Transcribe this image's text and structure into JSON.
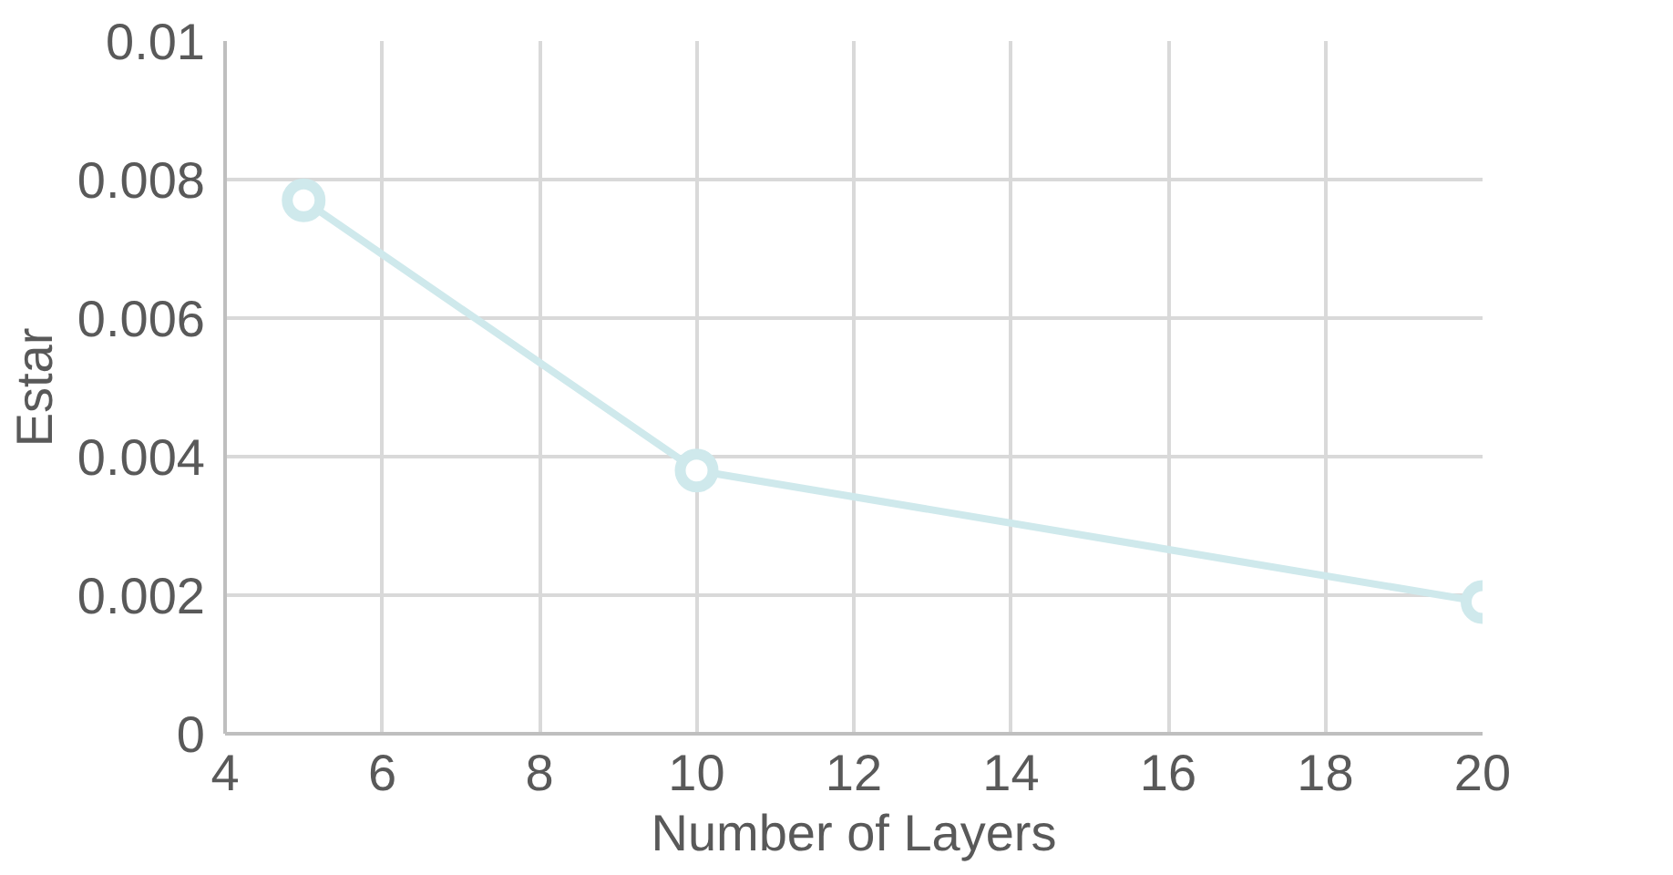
{
  "chart_data": {
    "type": "line",
    "xlabel": "Number of Layers",
    "ylabel": "Estar",
    "x": [
      5,
      10,
      20
    ],
    "series": [
      {
        "color": "#cfe9ec",
        "values": [
          0.0077,
          0.0038,
          0.0019
        ]
      }
    ],
    "xlim": [
      4,
      20
    ],
    "xticks": [
      4,
      6,
      8,
      10,
      12,
      14,
      16,
      18,
      20
    ],
    "ylim": [
      0,
      0.01
    ],
    "yticks": [
      0,
      0.002,
      0.004,
      0.006,
      0.008,
      0.01
    ],
    "grid": true,
    "marker": "circle",
    "line_style": "solid"
  }
}
